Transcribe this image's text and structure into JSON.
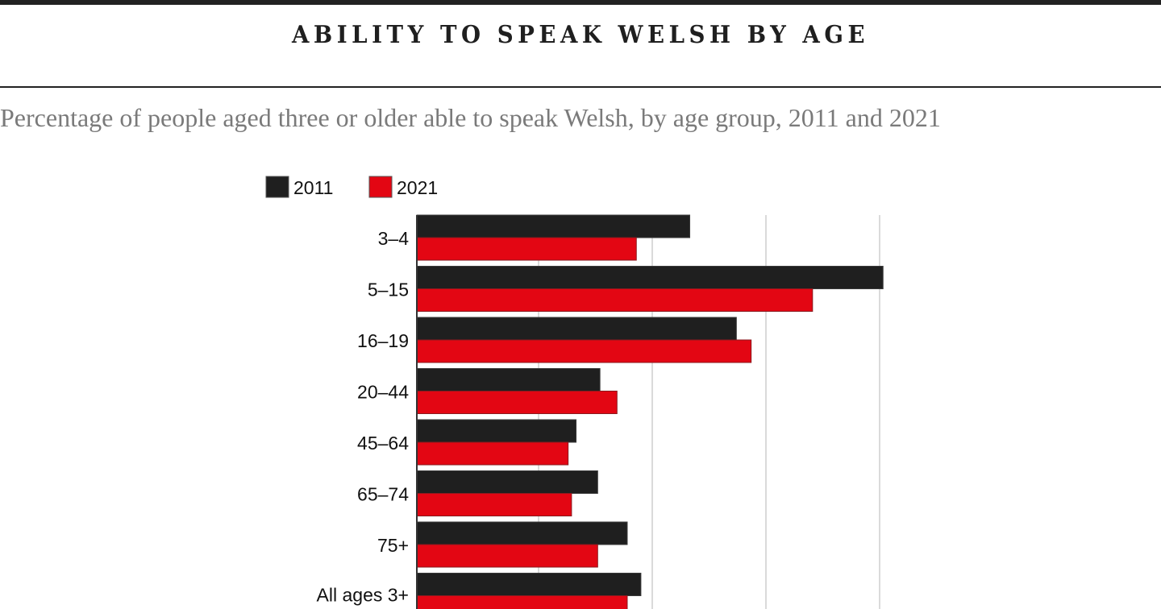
{
  "header": {
    "title": "ABILITY TO SPEAK WELSH BY AGE",
    "subtitle": "Percentage of people aged three or older able to speak Welsh, by age group, 2011 and 2021"
  },
  "chart_data": {
    "type": "bar",
    "orientation": "horizontal",
    "title": "ABILITY TO SPEAK WELSH BY AGE",
    "subtitle": "Percentage of people aged three or older able to speak Welsh, by age group, 2011 and 2021",
    "xlabel": "",
    "ylabel": "",
    "categories": [
      "3–4",
      "5–15",
      "16–19",
      "20–44",
      "45–64",
      "65–74",
      "75+",
      "All ages 3+"
    ],
    "series": [
      {
        "name": "2011",
        "color": "#1f1f1f",
        "values": [
          23.3,
          40.3,
          27.4,
          15.4,
          13.3,
          15.2,
          17.8,
          19.0
        ]
      },
      {
        "name": "2021",
        "color": "#e30613",
        "values": [
          18.6,
          34.1,
          28.7,
          16.9,
          12.6,
          12.9,
          15.2,
          17.8
        ]
      }
    ],
    "xlim": [
      0,
      42
    ],
    "gridlines": [
      10,
      20,
      30,
      40
    ],
    "grid": true,
    "legend_position": "top-left"
  }
}
